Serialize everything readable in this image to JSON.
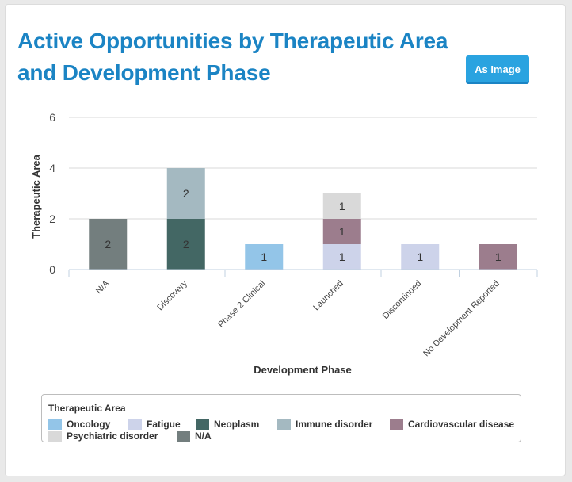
{
  "header": {
    "title": "Active Opportunities by Therapeutic Area and Development Phase",
    "export_button": "As Image"
  },
  "chart_data": {
    "type": "bar",
    "stacked": true,
    "title": "Active Opportunities by Therapeutic Area and Development Phase",
    "xlabel": "Development Phase",
    "ylabel": "Therapeutic Area",
    "ylim": [
      0,
      6
    ],
    "yticks": [
      0,
      2,
      4,
      6
    ],
    "grid": true,
    "categories": [
      "N/A",
      "Discovery",
      "Phase 2 Clinical",
      "Launched",
      "Discontinued",
      "No Development Reported"
    ],
    "series": [
      {
        "name": "Oncology",
        "color": "#93c5e8",
        "values": [
          0,
          0,
          1,
          0,
          0,
          0
        ]
      },
      {
        "name": "Fatigue",
        "color": "#cdd3ea",
        "values": [
          0,
          0,
          0,
          1,
          1,
          0
        ]
      },
      {
        "name": "Neoplasm",
        "color": "#436764",
        "values": [
          0,
          2,
          0,
          0,
          0,
          0
        ]
      },
      {
        "name": "Immune disorder",
        "color": "#a4b9c1",
        "values": [
          0,
          2,
          0,
          0,
          0,
          0
        ]
      },
      {
        "name": "Cardiovascular disease",
        "color": "#9c7d8d",
        "values": [
          0,
          0,
          0,
          1,
          0,
          1
        ]
      },
      {
        "name": "Psychiatric disorder",
        "color": "#d9d9d9",
        "values": [
          0,
          0,
          0,
          1,
          0,
          0
        ]
      },
      {
        "name": "N/A",
        "color": "#737e7e",
        "values": [
          2,
          0,
          0,
          0,
          0,
          0
        ]
      }
    ],
    "legend": {
      "title": "Therapeutic Area",
      "position": "bottom"
    }
  }
}
